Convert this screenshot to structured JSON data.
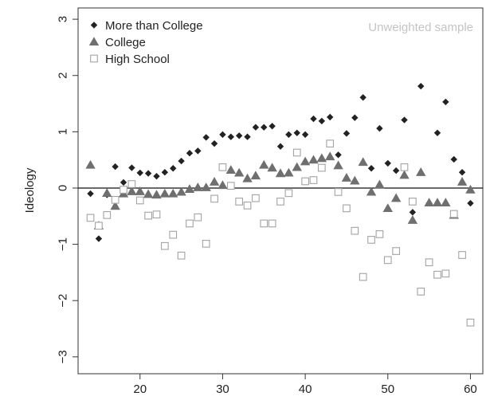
{
  "chart_data": {
    "type": "scatter",
    "title": "",
    "annotation": "Unweighted sample",
    "xlabel": "",
    "ylabel": "Ideology",
    "xlim": [
      12.5,
      61.5
    ],
    "ylim": [
      -3.3,
      3.2
    ],
    "x_ticks": [
      20,
      30,
      40,
      50,
      60
    ],
    "y_ticks": [
      -3,
      -2,
      -1,
      0,
      1,
      2,
      3
    ],
    "y_tick_labels": [
      "−3",
      "−2",
      "−1",
      "0",
      "1",
      "2",
      "3"
    ],
    "reference_line_y": 0,
    "grid": false,
    "legend_position": "top-left",
    "series": [
      {
        "name": "More than College",
        "marker": "diamond",
        "color": "#222222",
        "points": [
          [
            14,
            -0.1
          ],
          [
            15,
            -0.9
          ],
          [
            16,
            -0.12
          ],
          [
            17,
            0.38
          ],
          [
            18,
            0.1
          ],
          [
            19,
            0.36
          ],
          [
            20,
            0.27
          ],
          [
            21,
            0.26
          ],
          [
            22,
            0.21
          ],
          [
            23,
            0.28
          ],
          [
            24,
            0.35
          ],
          [
            25,
            0.48
          ],
          [
            26,
            0.62
          ],
          [
            27,
            0.66
          ],
          [
            28,
            0.9
          ],
          [
            29,
            0.79
          ],
          [
            30,
            0.95
          ],
          [
            31,
            0.91
          ],
          [
            32,
            0.93
          ],
          [
            33,
            0.91
          ],
          [
            34,
            1.08
          ],
          [
            35,
            1.08
          ],
          [
            36,
            1.1
          ],
          [
            37,
            0.74
          ],
          [
            38,
            0.95
          ],
          [
            39,
            0.98
          ],
          [
            40,
            0.95
          ],
          [
            41,
            1.23
          ],
          [
            42,
            1.19
          ],
          [
            43,
            1.26
          ],
          [
            44,
            0.59
          ],
          [
            45,
            0.97
          ],
          [
            46,
            1.25
          ],
          [
            47,
            1.61
          ],
          [
            48,
            0.35
          ],
          [
            49,
            1.06
          ],
          [
            50,
            0.44
          ],
          [
            51,
            0.31
          ],
          [
            52,
            1.21
          ],
          [
            53,
            -0.43
          ],
          [
            54,
            1.81
          ],
          [
            55,
            -0.27
          ],
          [
            56,
            0.98
          ],
          [
            57,
            1.53
          ],
          [
            58,
            0.51
          ],
          [
            59,
            0.28
          ],
          [
            60,
            -0.27
          ]
        ]
      },
      {
        "name": "College",
        "marker": "triangle",
        "color": "#6f6f6f",
        "points": [
          [
            14,
            0.41
          ],
          [
            15,
            -0.67
          ],
          [
            16,
            -0.09
          ],
          [
            17,
            -0.32
          ],
          [
            18,
            -0.1
          ],
          [
            19,
            -0.06
          ],
          [
            20,
            -0.06
          ],
          [
            21,
            -0.11
          ],
          [
            22,
            -0.12
          ],
          [
            23,
            -0.1
          ],
          [
            24,
            -0.1
          ],
          [
            25,
            -0.07
          ],
          [
            26,
            -0.02
          ],
          [
            27,
            0.01
          ],
          [
            28,
            0.01
          ],
          [
            29,
            0.11
          ],
          [
            30,
            0.05
          ],
          [
            31,
            0.32
          ],
          [
            32,
            0.27
          ],
          [
            33,
            0.17
          ],
          [
            34,
            0.22
          ],
          [
            35,
            0.41
          ],
          [
            36,
            0.36
          ],
          [
            37,
            0.26
          ],
          [
            38,
            0.27
          ],
          [
            39,
            0.37
          ],
          [
            40,
            0.47
          ],
          [
            41,
            0.5
          ],
          [
            42,
            0.53
          ],
          [
            43,
            0.56
          ],
          [
            44,
            0.4
          ],
          [
            45,
            0.18
          ],
          [
            46,
            0.13
          ],
          [
            47,
            0.46
          ],
          [
            48,
            -0.07
          ],
          [
            49,
            0.06
          ],
          [
            50,
            -0.36
          ],
          [
            51,
            -0.18
          ],
          [
            52,
            0.23
          ],
          [
            53,
            -0.57
          ],
          [
            54,
            0.28
          ],
          [
            55,
            -0.26
          ],
          [
            56,
            -0.26
          ],
          [
            57,
            -0.26
          ],
          [
            58,
            -0.48
          ],
          [
            59,
            0.11
          ],
          [
            60,
            -0.03
          ]
        ]
      },
      {
        "name": "High School",
        "marker": "square-open",
        "color": "#a3a3a3",
        "points": [
          [
            14,
            -0.53
          ],
          [
            15,
            -0.67
          ],
          [
            16,
            -0.48
          ],
          [
            17,
            -0.21
          ],
          [
            18,
            -0.03
          ],
          [
            19,
            0.07
          ],
          [
            20,
            -0.22
          ],
          [
            21,
            -0.49
          ],
          [
            22,
            -0.47
          ],
          [
            23,
            -1.03
          ],
          [
            24,
            -0.83
          ],
          [
            25,
            -1.2
          ],
          [
            26,
            -0.63
          ],
          [
            27,
            -0.52
          ],
          [
            28,
            -0.99
          ],
          [
            29,
            -0.19
          ],
          [
            30,
            0.37
          ],
          [
            31,
            0.04
          ],
          [
            32,
            -0.24
          ],
          [
            33,
            -0.31
          ],
          [
            34,
            -0.18
          ],
          [
            35,
            -0.63
          ],
          [
            36,
            -0.63
          ],
          [
            37,
            -0.24
          ],
          [
            38,
            -0.09
          ],
          [
            39,
            0.63
          ],
          [
            40,
            0.12
          ],
          [
            41,
            0.14
          ],
          [
            42,
            0.36
          ],
          [
            43,
            0.79
          ],
          [
            44,
            -0.07
          ],
          [
            45,
            -0.36
          ],
          [
            46,
            -0.76
          ],
          [
            47,
            -1.58
          ],
          [
            48,
            -0.92
          ],
          [
            49,
            -0.82
          ],
          [
            50,
            -1.28
          ],
          [
            51,
            -1.12
          ],
          [
            52,
            0.37
          ],
          [
            53,
            -0.24
          ],
          [
            54,
            -1.84
          ],
          [
            55,
            -1.32
          ],
          [
            56,
            -1.54
          ],
          [
            57,
            -1.52
          ],
          [
            58,
            -0.46
          ],
          [
            59,
            -1.19
          ],
          [
            60,
            -2.39
          ]
        ]
      }
    ]
  }
}
